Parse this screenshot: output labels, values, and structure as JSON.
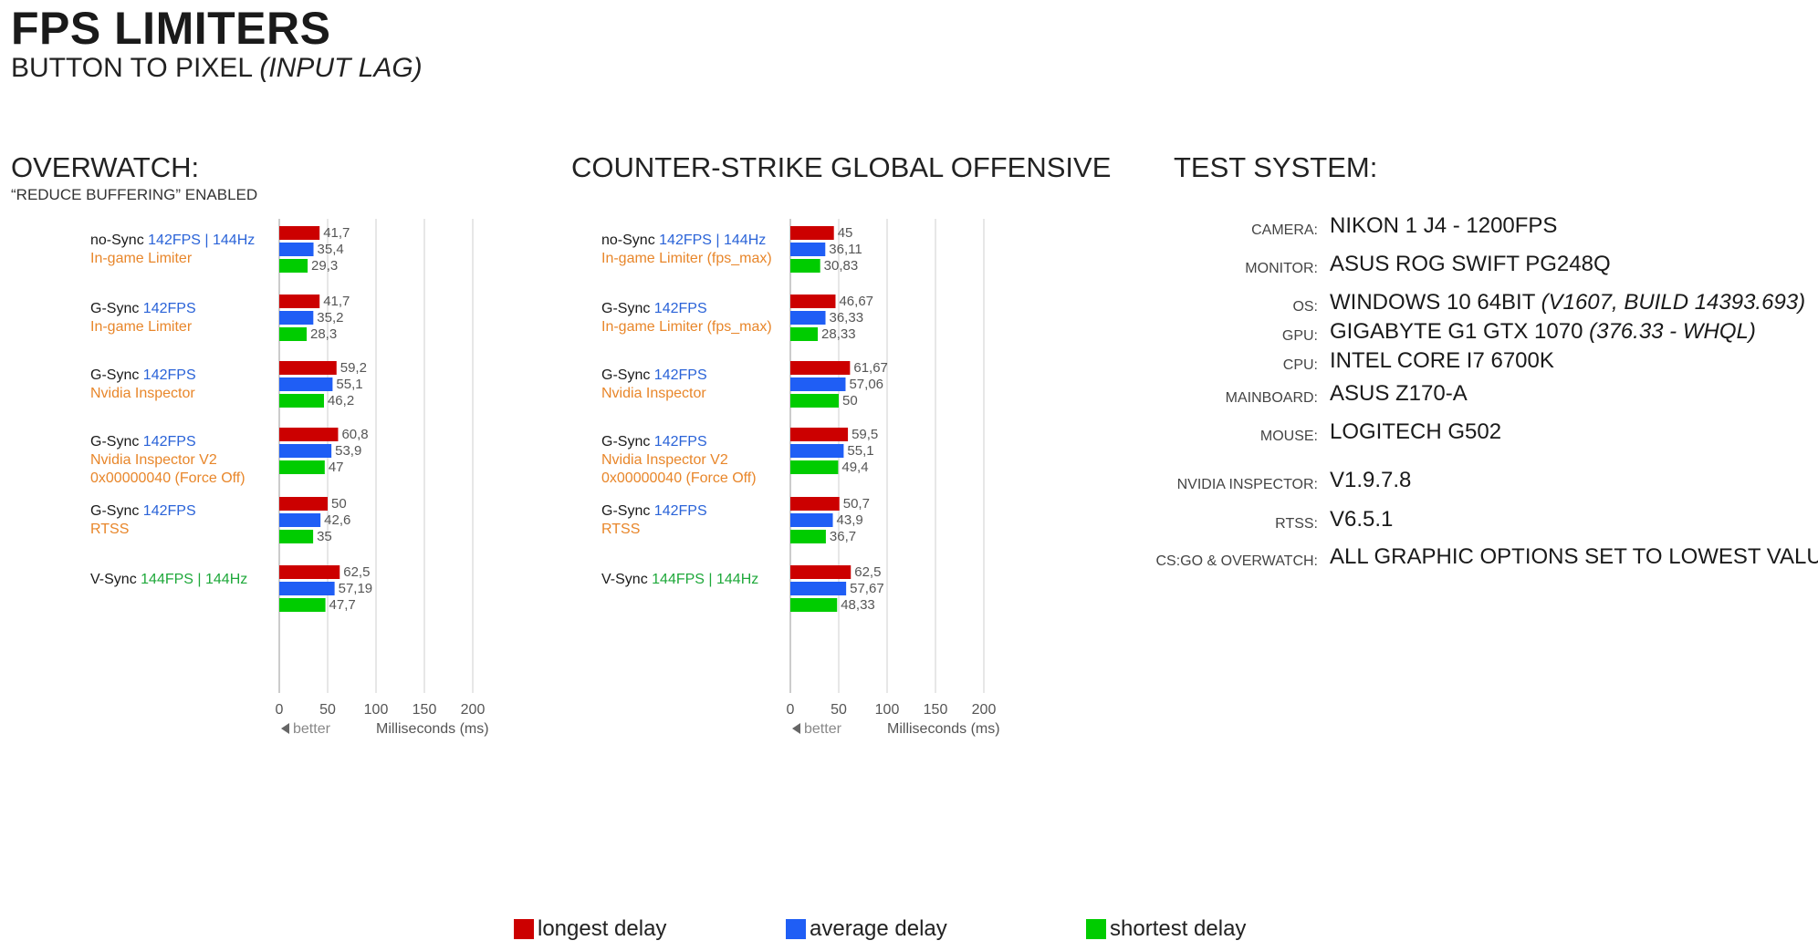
{
  "header": {
    "title": "FPS LIMITERS",
    "subtitle_main": "BUTTON TO PIXEL ",
    "subtitle_italic": "(INPUT LAG)"
  },
  "sections": {
    "overwatch_title": "OVERWATCH:",
    "overwatch_subtitle": "“REDUCE BUFFERING” ENABLED",
    "csgo_title": "COUNTER-STRIKE GLOBAL OFFENSIVE",
    "system_title": "TEST SYSTEM:"
  },
  "colors": {
    "longest": "#cc0000",
    "average": "#1f5ef5",
    "shortest": "#00cc00",
    "label_blue": "#2a63d8",
    "label_orange": "#e8862a",
    "label_green": "#1ea83a",
    "grid": "#cfcfcf",
    "text_gray": "#555555"
  },
  "legend": [
    {
      "label": "longest delay",
      "color": "#cc0000"
    },
    {
      "label": "average delay",
      "color": "#1f5ef5"
    },
    {
      "label": "shortest delay",
      "color": "#00cc00"
    }
  ],
  "test_system": [
    {
      "key": "CAMERA:",
      "value": "NIKON 1 J4 - 1200FPS",
      "value_italic": ""
    },
    {
      "key": "MONITOR:",
      "value": "ASUS ROG SWIFT PG248Q",
      "value_italic": ""
    },
    {
      "key": "OS:",
      "value": "WINDOWS 10 64BIT ",
      "value_italic": "(V1607, BUILD 14393.693)"
    },
    {
      "key": "GPU:",
      "value": "GIGABYTE G1 GTX 1070 ",
      "value_italic": "(376.33 - WHQL)"
    },
    {
      "key": "CPU:",
      "value": "INTEL CORE I7 6700K",
      "value_italic": ""
    },
    {
      "key": "MAINBOARD:",
      "value": "ASUS Z170-A",
      "value_italic": ""
    },
    {
      "key": "MOUSE:",
      "value": "LOGITECH G502",
      "value_italic": ""
    },
    {
      "key": "NVIDIA INSPECTOR:",
      "value": "V1.9.7.8",
      "value_italic": ""
    },
    {
      "key": "RTSS:",
      "value": "V6.5.1",
      "value_italic": ""
    },
    {
      "key": "CS:GO & OVERWATCH:",
      "value": "ALL GRAPHIC OPTIONS SET TO LOWEST VALUE",
      "value_italic": ""
    }
  ],
  "chart_data": [
    {
      "type": "bar",
      "name": "overwatch",
      "orientation": "horizontal",
      "xticks": [
        "0",
        "50",
        "100",
        "150",
        "200"
      ],
      "xlim": [
        0,
        200
      ],
      "xlabel": "Milliseconds (ms)",
      "better_label": "better",
      "categories": [
        {
          "lines": [
            [
              {
                "t": "no-Sync ",
                "c": "dark"
              },
              {
                "t": "142FPS | 144Hz",
                "c": "blue"
              }
            ],
            [
              {
                "t": "In-game Limiter",
                "c": "orange"
              }
            ]
          ]
        },
        {
          "lines": [
            [
              {
                "t": "G-Sync ",
                "c": "dark"
              },
              {
                "t": "142FPS",
                "c": "blue"
              }
            ],
            [
              {
                "t": "In-game Limiter",
                "c": "orange"
              }
            ]
          ]
        },
        {
          "lines": [
            [
              {
                "t": "G-Sync ",
                "c": "dark"
              },
              {
                "t": "142FPS",
                "c": "blue"
              }
            ],
            [
              {
                "t": "Nvidia Inspector",
                "c": "orange"
              }
            ]
          ]
        },
        {
          "lines": [
            [
              {
                "t": "G-Sync ",
                "c": "dark"
              },
              {
                "t": "142FPS",
                "c": "blue"
              }
            ],
            [
              {
                "t": "Nvidia Inspector V2",
                "c": "orange"
              }
            ],
            [
              {
                "t": "0x00000040 (Force Off)",
                "c": "orange"
              }
            ]
          ]
        },
        {
          "lines": [
            [
              {
                "t": "G-Sync ",
                "c": "dark"
              },
              {
                "t": "142FPS",
                "c": "blue"
              }
            ],
            [
              {
                "t": "RTSS",
                "c": "orange"
              }
            ]
          ]
        },
        {
          "lines": [
            [
              {
                "t": "V-Sync ",
                "c": "dark"
              },
              {
                "t": "144FPS | 144Hz",
                "c": "green"
              }
            ]
          ]
        }
      ],
      "series": [
        {
          "name": "longest delay",
          "values": [
            41.7,
            41.7,
            59.2,
            60.8,
            50,
            62.5
          ],
          "labels": [
            "41,7",
            "41,7",
            "59,2",
            "60,8",
            "50",
            "62,5"
          ]
        },
        {
          "name": "average delay",
          "values": [
            35.4,
            35.2,
            55.1,
            53.9,
            42.6,
            57.19
          ],
          "labels": [
            "35,4",
            "35,2",
            "55,1",
            "53,9",
            "42,6",
            "57,19"
          ]
        },
        {
          "name": "shortest delay",
          "values": [
            29.3,
            28.3,
            46.2,
            47,
            35,
            47.7
          ],
          "labels": [
            "29,3",
            "28,3",
            "46,2",
            "47",
            "35",
            "47,7"
          ]
        }
      ]
    },
    {
      "type": "bar",
      "name": "csgo",
      "orientation": "horizontal",
      "xticks": [
        "0",
        "50",
        "100",
        "150",
        "200"
      ],
      "xlim": [
        0,
        200
      ],
      "xlabel": "Milliseconds (ms)",
      "better_label": "better",
      "categories": [
        {
          "lines": [
            [
              {
                "t": "no-Sync ",
                "c": "dark"
              },
              {
                "t": "142FPS | 144Hz",
                "c": "blue"
              }
            ],
            [
              {
                "t": "In-game Limiter (fps_max)",
                "c": "orange"
              }
            ]
          ]
        },
        {
          "lines": [
            [
              {
                "t": "G-Sync ",
                "c": "dark"
              },
              {
                "t": "142FPS",
                "c": "blue"
              }
            ],
            [
              {
                "t": "In-game Limiter (fps_max)",
                "c": "orange"
              }
            ]
          ]
        },
        {
          "lines": [
            [
              {
                "t": "G-Sync ",
                "c": "dark"
              },
              {
                "t": "142FPS",
                "c": "blue"
              }
            ],
            [
              {
                "t": "Nvidia Inspector",
                "c": "orange"
              }
            ]
          ]
        },
        {
          "lines": [
            [
              {
                "t": "G-Sync ",
                "c": "dark"
              },
              {
                "t": "142FPS",
                "c": "blue"
              }
            ],
            [
              {
                "t": "Nvidia Inspector V2",
                "c": "orange"
              }
            ],
            [
              {
                "t": "0x00000040 (Force Off)",
                "c": "orange"
              }
            ]
          ]
        },
        {
          "lines": [
            [
              {
                "t": "G-Sync ",
                "c": "dark"
              },
              {
                "t": "142FPS",
                "c": "blue"
              }
            ],
            [
              {
                "t": "RTSS",
                "c": "orange"
              }
            ]
          ]
        },
        {
          "lines": [
            [
              {
                "t": "V-Sync ",
                "c": "dark"
              },
              {
                "t": "144FPS | 144Hz",
                "c": "green"
              }
            ]
          ]
        }
      ],
      "series": [
        {
          "name": "longest delay",
          "values": [
            45,
            46.67,
            61.67,
            59.5,
            50.7,
            62.5
          ],
          "labels": [
            "45",
            "46,67",
            "61,67",
            "59,5",
            "50,7",
            "62,5"
          ]
        },
        {
          "name": "average delay",
          "values": [
            36.11,
            36.33,
            57.06,
            55.1,
            43.9,
            57.67
          ],
          "labels": [
            "36,11",
            "36,33",
            "57,06",
            "55,1",
            "43,9",
            "57,67"
          ]
        },
        {
          "name": "shortest delay",
          "values": [
            30.83,
            28.33,
            50,
            49.4,
            36.7,
            48.33
          ],
          "labels": [
            "30,83",
            "28,33",
            "50",
            "49,4",
            "36,7",
            "48,33"
          ]
        }
      ]
    }
  ]
}
